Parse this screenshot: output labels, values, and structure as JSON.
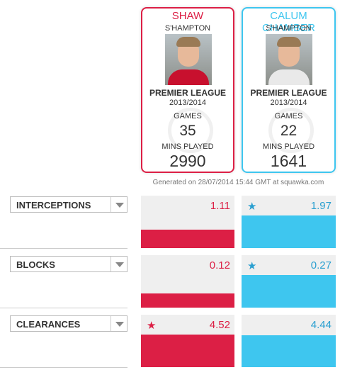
{
  "players": [
    {
      "name": "SHAW",
      "club": "S'HAMPTON",
      "league": "PREMIER LEAGUE",
      "season": "2013/2014",
      "games_label": "GAMES",
      "games": 35,
      "mins_label": "MINS PLAYED",
      "mins": 2990,
      "color": "#dc1f45"
    },
    {
      "name": "CALUM CHAMBER",
      "club": "S'HAMPTON",
      "league": "PREMIER LEAGUE",
      "season": "2013/2014",
      "games_label": "GAMES",
      "games": 22,
      "mins_label": "MINS PLAYED",
      "mins": 1641,
      "color": "#3ec6ef"
    }
  ],
  "generated": "Generated on 28/07/2014 15:44 GMT at squawka.com",
  "stats": [
    {
      "label": "INTERCEPTIONS",
      "values": [
        1.11,
        1.97
      ]
    },
    {
      "label": "BLOCKS",
      "values": [
        0.12,
        0.27
      ]
    },
    {
      "label": "CLEARANCES",
      "values": [
        4.52,
        4.44
      ]
    }
  ]
}
